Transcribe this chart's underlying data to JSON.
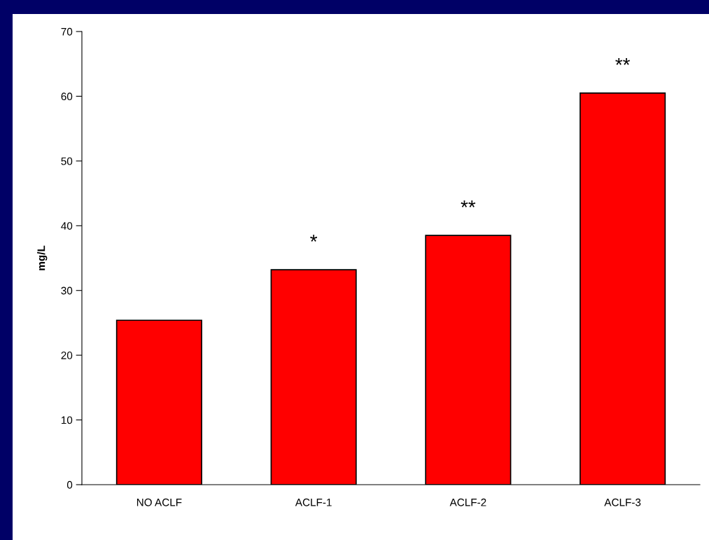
{
  "chart_data": {
    "type": "bar",
    "ylabel": "mg/L",
    "categories": [
      "NO ACLF",
      "ACLF-1",
      "ACLF-2",
      "ACLF-3"
    ],
    "series": [
      {
        "color": "#ff0000",
        "values": [
          25.4,
          33.2,
          38.5,
          60.5
        ],
        "value_labels": [
          null,
          "*",
          "**",
          "**"
        ]
      }
    ],
    "ylim": [
      0,
      70
    ],
    "yticks": [
      0,
      10,
      20,
      30,
      40,
      50,
      60,
      70
    ],
    "grid": false,
    "legend": false
  }
}
